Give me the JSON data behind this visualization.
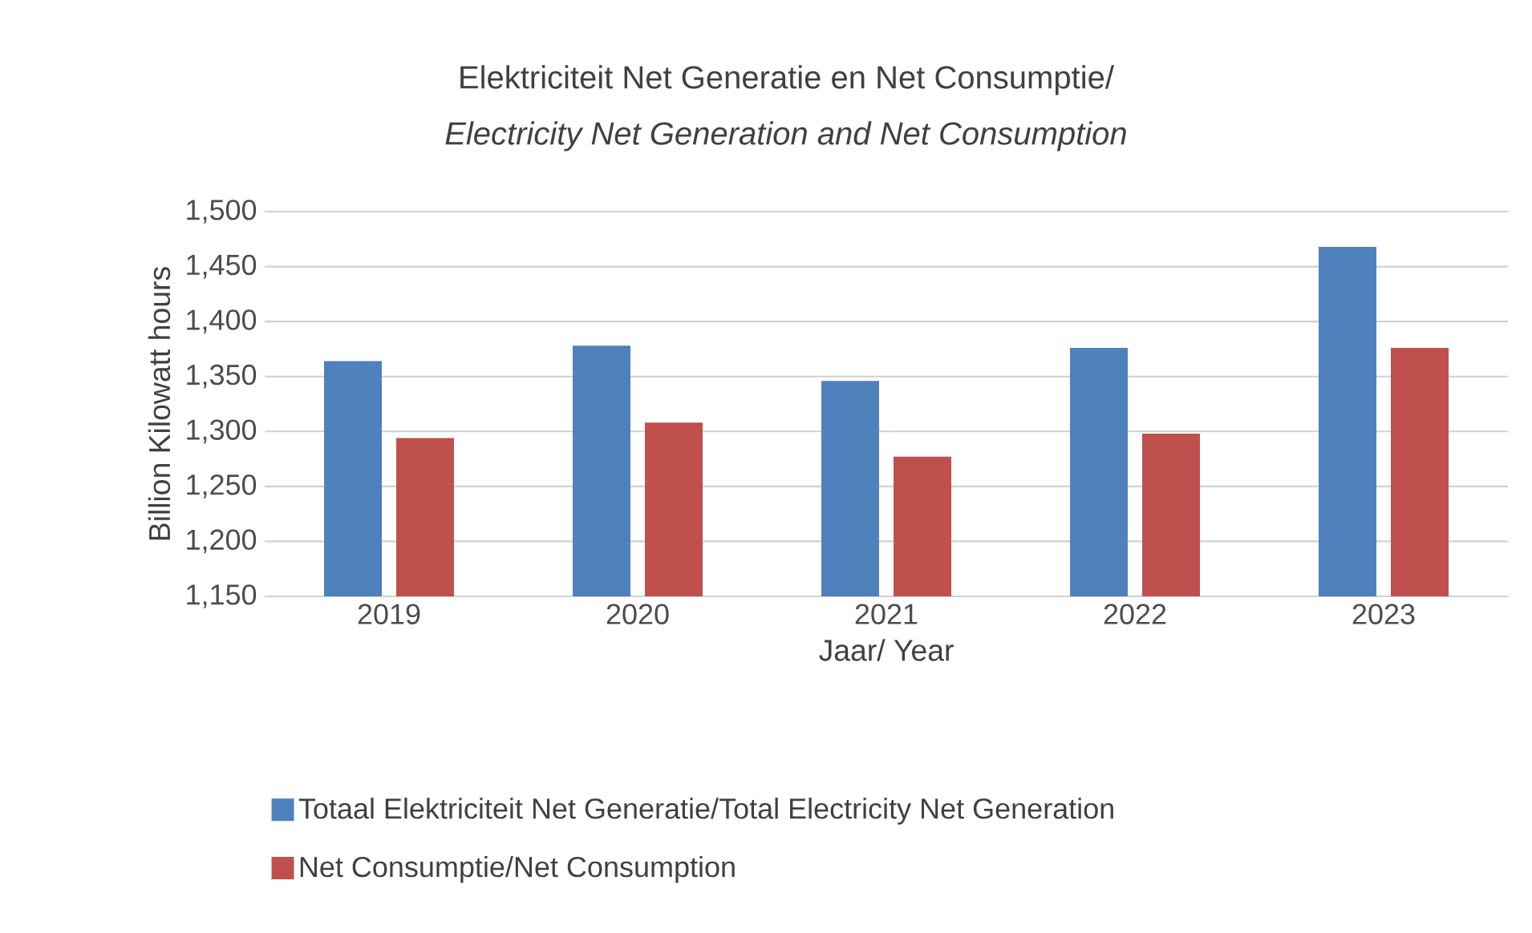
{
  "chart_data": {
    "type": "bar",
    "title": "Elektriciteit Net Generatie en Net Consumptie/",
    "subtitle": "Electricity Net Generation and Net Consumption",
    "xlabel": "Jaar/ Year",
    "ylabel": "Billion Kilowatt hours",
    "categories": [
      "2019",
      "2020",
      "2021",
      "2022",
      "2023"
    ],
    "series": [
      {
        "name": "Totaal Elektriciteit Net Generatie/Total Electricity Net Generation",
        "color": "#4f81bd",
        "values": [
          1364,
          1378,
          1346,
          1376,
          1468
        ]
      },
      {
        "name": "Net Consumptie/Net Consumption",
        "color": "#c0504d",
        "values": [
          1294,
          1308,
          1277,
          1298,
          1376
        ]
      }
    ],
    "ylim": [
      1150,
      1500
    ],
    "yticks": [
      {
        "value": 1150,
        "label": "1,150"
      },
      {
        "value": 1200,
        "label": "1,200"
      },
      {
        "value": 1250,
        "label": "1,250"
      },
      {
        "value": 1300,
        "label": "1,300"
      },
      {
        "value": 1350,
        "label": "1,350"
      },
      {
        "value": 1400,
        "label": "1,400"
      },
      {
        "value": 1450,
        "label": "1,450"
      },
      {
        "value": 1500,
        "label": "1,500"
      }
    ],
    "grid": "y",
    "legend": "bottom"
  }
}
